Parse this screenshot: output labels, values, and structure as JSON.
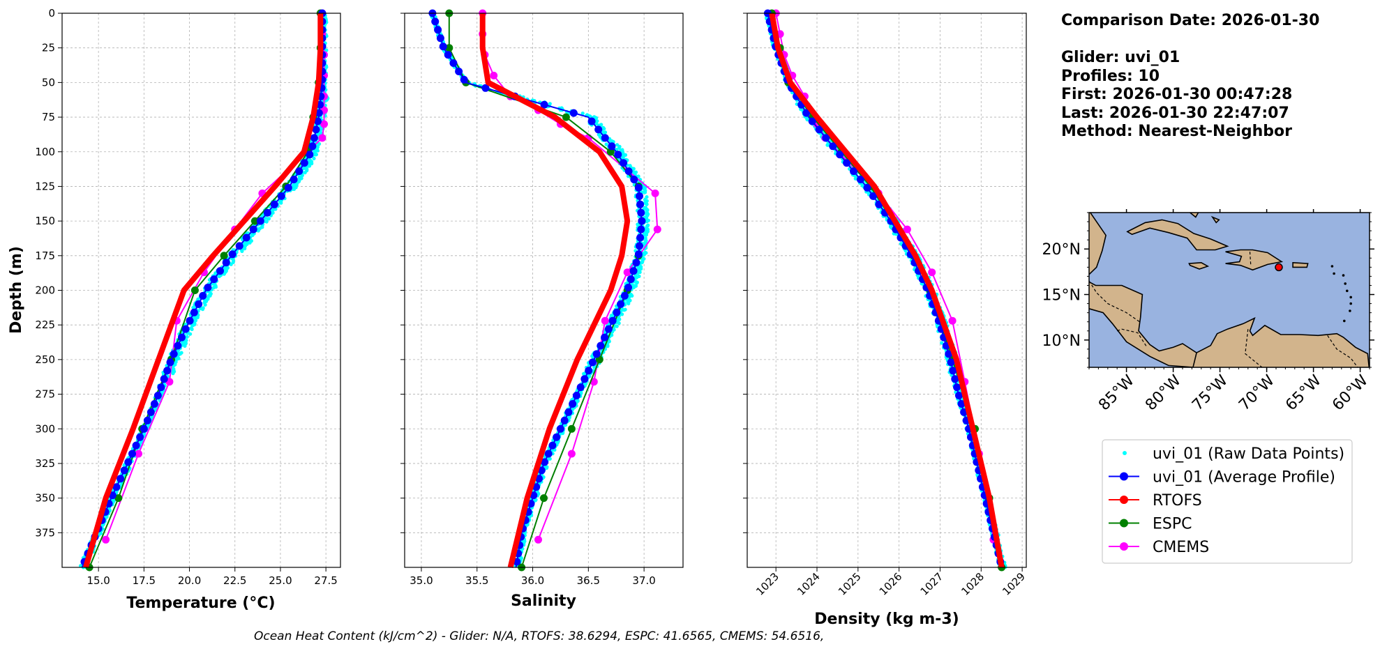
{
  "info": {
    "comparison_date": "Comparison Date: 2026-01-30",
    "glider": "Glider: uvi_01",
    "profiles": "Profiles: 10",
    "first": "First: 2026-01-30 00:47:28",
    "last": "Last: 2026-01-30 22:47:07",
    "method": "Method: Nearest-Neighbor"
  },
  "footer": "Ocean Heat Content (kJ/cm^2) - Glider: N/A,  RTOFS: 38.6294,  ESPC: 41.6565,  CMEMS: 54.6516,",
  "legend": [
    {
      "label": "uvi_01 (Raw Data Points)",
      "color": "#00ffff",
      "style": "points"
    },
    {
      "label": "uvi_01 (Average Profile)",
      "color": "#0000ff",
      "style": "line-marker"
    },
    {
      "label": "RTOFS",
      "color": "#ff0000",
      "style": "line-marker"
    },
    {
      "label": "ESPC",
      "color": "#008000",
      "style": "line-marker"
    },
    {
      "label": "CMEMS",
      "color": "#ff00ff",
      "style": "line-marker"
    }
  ],
  "map": {
    "ocean_color": "#99b3e0",
    "land_color": "#d2b48c",
    "marker_color": "#ff0000",
    "lon_ticks": [
      "85°W",
      "80°W",
      "75°W",
      "70°W",
      "65°W",
      "60°W"
    ],
    "lat_ticks": [
      "20°N",
      "15°N",
      "10°N"
    ],
    "lon_values": [
      -85,
      -80,
      -75,
      -70,
      -65,
      -60
    ],
    "lat_values": [
      20,
      15,
      10
    ],
    "lon_range": [
      -89,
      -59
    ],
    "lat_range": [
      7,
      24
    ],
    "glider_position": {
      "lon": -68.7,
      "lat": 18.0
    }
  },
  "chart_data": [
    {
      "type": "line",
      "xlabel": "Temperature (°C)",
      "ylabel": "Depth (m)",
      "xlim": [
        13.0,
        28.3
      ],
      "ylim": [
        400,
        0
      ],
      "x_ticks": [
        15.0,
        17.5,
        20.0,
        22.5,
        25.0,
        27.5
      ],
      "x_tick_labels": [
        "15.0",
        "17.5",
        "20.0",
        "22.5",
        "25.0",
        "27.5"
      ],
      "y_ticks": [
        0,
        25,
        50,
        75,
        100,
        125,
        150,
        175,
        200,
        225,
        250,
        275,
        300,
        325,
        350,
        375
      ],
      "grid": true,
      "series": [
        {
          "name": "uvi_01 (Average Profile)",
          "color": "#0000ff",
          "depth": [
            0,
            25,
            50,
            75,
            100,
            125,
            150,
            175,
            200,
            225,
            250,
            275,
            300,
            325,
            350,
            375,
            400
          ],
          "values": [
            27.3,
            27.3,
            27.3,
            27.1,
            26.7,
            25.5,
            23.9,
            22.3,
            20.9,
            19.9,
            19.0,
            18.3,
            17.5,
            16.6,
            15.7,
            14.9,
            14.1
          ]
        },
        {
          "name": "RTOFS",
          "color": "#ff0000",
          "depth": [
            0,
            25,
            50,
            75,
            100,
            125,
            150,
            175,
            200,
            250,
            300,
            350,
            400
          ],
          "values": [
            27.2,
            27.2,
            27.1,
            26.8,
            26.3,
            24.7,
            23.0,
            21.3,
            19.7,
            18.3,
            16.9,
            15.4,
            14.3
          ]
        },
        {
          "name": "ESPC",
          "color": "#008000",
          "depth": [
            0,
            25,
            50,
            75,
            100,
            125,
            150,
            175,
            200,
            250,
            300,
            350,
            400
          ],
          "values": [
            27.2,
            27.2,
            27.1,
            26.8,
            26.5,
            25.3,
            23.6,
            21.9,
            20.3,
            19.0,
            17.4,
            16.1,
            14.5
          ]
        },
        {
          "name": "CMEMS",
          "color": "#ff00ff",
          "depth": [
            0,
            15,
            30,
            45,
            60,
            70,
            80,
            90,
            130,
            156,
            187,
            222,
            266,
            318,
            380
          ],
          "values": [
            27.3,
            27.3,
            27.4,
            27.4,
            27.4,
            27.4,
            27.4,
            27.3,
            24.0,
            22.5,
            20.8,
            19.3,
            18.9,
            17.2,
            15.4
          ]
        }
      ]
    },
    {
      "type": "line",
      "xlabel": "Salinity",
      "xlim": [
        34.85,
        37.35
      ],
      "ylim": [
        400,
        0
      ],
      "x_ticks": [
        35.0,
        35.5,
        36.0,
        36.5,
        37.0
      ],
      "x_tick_labels": [
        "35.0",
        "35.5",
        "36.0",
        "36.5",
        "37.0"
      ],
      "grid": true,
      "series": [
        {
          "name": "uvi_01 (Average Profile)",
          "color": "#0000ff",
          "depth": [
            0,
            25,
            50,
            75,
            100,
            125,
            150,
            175,
            200,
            225,
            250,
            275,
            300,
            325,
            350,
            375,
            400
          ],
          "values": [
            35.1,
            35.2,
            35.4,
            36.5,
            36.75,
            36.95,
            36.98,
            36.95,
            36.85,
            36.7,
            36.55,
            36.4,
            36.25,
            36.1,
            36.0,
            35.9,
            35.85
          ]
        },
        {
          "name": "RTOFS",
          "color": "#ff0000",
          "depth": [
            0,
            25,
            50,
            75,
            100,
            125,
            150,
            175,
            200,
            250,
            300,
            350,
            400
          ],
          "values": [
            35.55,
            35.55,
            35.6,
            36.2,
            36.6,
            36.8,
            36.85,
            36.8,
            36.7,
            36.4,
            36.15,
            35.95,
            35.8
          ]
        },
        {
          "name": "ESPC",
          "color": "#008000",
          "depth": [
            0,
            25,
            50,
            75,
            100,
            125,
            150,
            175,
            200,
            250,
            300,
            350,
            400
          ],
          "values": [
            35.25,
            35.25,
            35.4,
            36.3,
            36.7,
            36.95,
            36.98,
            36.95,
            36.85,
            36.6,
            36.35,
            36.1,
            35.9
          ]
        },
        {
          "name": "CMEMS",
          "color": "#ff00ff",
          "depth": [
            0,
            15,
            30,
            45,
            60,
            70,
            80,
            90,
            130,
            156,
            187,
            222,
            266,
            318,
            380
          ],
          "values": [
            35.55,
            35.55,
            35.57,
            35.65,
            35.8,
            36.05,
            36.25,
            36.5,
            37.1,
            37.12,
            36.85,
            36.65,
            36.55,
            36.35,
            36.05
          ]
        }
      ]
    },
    {
      "type": "line",
      "xlabel": "Density (kg m-3)",
      "xlim": [
        1022.3,
        1029.1
      ],
      "ylim": [
        400,
        0
      ],
      "x_ticks": [
        1023,
        1024,
        1025,
        1026,
        1027,
        1028,
        1029
      ],
      "x_tick_labels": [
        "1023",
        "1024",
        "1025",
        "1026",
        "1027",
        "1028",
        "1029"
      ],
      "grid": true,
      "series": [
        {
          "name": "uvi_01 (Average Profile)",
          "color": "#0000ff",
          "depth": [
            0,
            25,
            50,
            75,
            100,
            125,
            150,
            175,
            200,
            225,
            250,
            275,
            300,
            325,
            350,
            375,
            400
          ],
          "values": [
            1022.8,
            1023.0,
            1023.3,
            1023.8,
            1024.5,
            1025.2,
            1025.8,
            1026.3,
            1026.7,
            1027.0,
            1027.25,
            1027.45,
            1027.7,
            1027.9,
            1028.1,
            1028.3,
            1028.5
          ]
        },
        {
          "name": "RTOFS",
          "color": "#ff0000",
          "depth": [
            0,
            25,
            50,
            75,
            100,
            125,
            150,
            175,
            200,
            250,
            300,
            350,
            400
          ],
          "values": [
            1022.9,
            1023.05,
            1023.35,
            1024.0,
            1024.7,
            1025.4,
            1025.9,
            1026.4,
            1026.8,
            1027.4,
            1027.8,
            1028.2,
            1028.5
          ]
        },
        {
          "name": "ESPC",
          "color": "#008000",
          "depth": [
            0,
            25,
            50,
            75,
            100,
            125,
            150,
            175,
            200,
            250,
            300,
            350,
            400
          ],
          "values": [
            1022.9,
            1023.1,
            1023.3,
            1023.9,
            1024.6,
            1025.3,
            1025.85,
            1026.35,
            1026.75,
            1027.3,
            1027.85,
            1028.2,
            1028.5
          ]
        },
        {
          "name": "CMEMS",
          "color": "#ff00ff",
          "depth": [
            0,
            15,
            30,
            45,
            60,
            70,
            80,
            90,
            130,
            156,
            187,
            222,
            266,
            318,
            380
          ],
          "values": [
            1023.0,
            1023.1,
            1023.2,
            1023.4,
            1023.7,
            1023.8,
            1024.0,
            1024.2,
            1025.5,
            1026.2,
            1026.8,
            1027.3,
            1027.6,
            1027.95,
            1028.3
          ]
        }
      ]
    }
  ]
}
